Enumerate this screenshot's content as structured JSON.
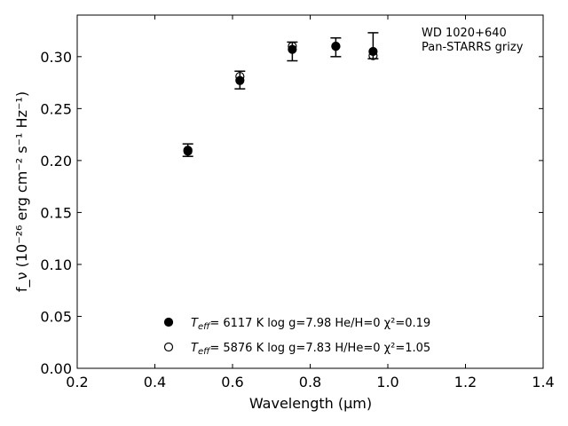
{
  "chart_data": {
    "type": "scatter",
    "xlabel": "Wavelength (μm)",
    "ylabel": "f_ν (10⁻²⁶ erg cm⁻² s⁻¹ Hz⁻¹)",
    "xlim": [
      0.2,
      1.4
    ],
    "ylim": [
      0.0,
      0.34
    ],
    "x_ticks": [
      "0.2",
      "0.4",
      "0.6",
      "0.8",
      "1.0",
      "1.2",
      "1.4"
    ],
    "y_ticks": [
      "0.00",
      "0.05",
      "0.10",
      "0.15",
      "0.20",
      "0.25",
      "0.30"
    ],
    "grid": false,
    "annotation": [
      "WD 1020+640",
      "Pan-STARRS grizy"
    ],
    "legend_position": "bottom-center",
    "observed": {
      "x": [
        0.485,
        0.619,
        0.754,
        0.866,
        0.962
      ],
      "y": [
        0.21,
        0.277,
        0.305,
        0.309,
        0.31
      ],
      "err_low": [
        0.204,
        0.269,
        0.296,
        0.3,
        0.298
      ],
      "err_high": [
        0.216,
        0.286,
        0.314,
        0.318,
        0.323
      ]
    },
    "series": [
      {
        "label_prefix": "T",
        "label_sub": "eff",
        "label_rest": "=  6117 K  log g=7.98  He/H=0  χ²=0.19",
        "marker": "filled-circle",
        "x": [
          0.485,
          0.619,
          0.754,
          0.866,
          0.962
        ],
        "y": [
          0.209,
          0.277,
          0.307,
          0.31,
          0.305
        ]
      },
      {
        "label_prefix": "T",
        "label_sub": "eff",
        "label_rest": "=  5876 K  log g=7.83  H/He=0  χ²=1.05",
        "marker": "open-circle",
        "x": [
          0.485,
          0.619,
          0.754,
          0.866,
          0.962
        ],
        "y": [
          0.21,
          0.281,
          0.31,
          0.31,
          0.301
        ]
      }
    ]
  }
}
